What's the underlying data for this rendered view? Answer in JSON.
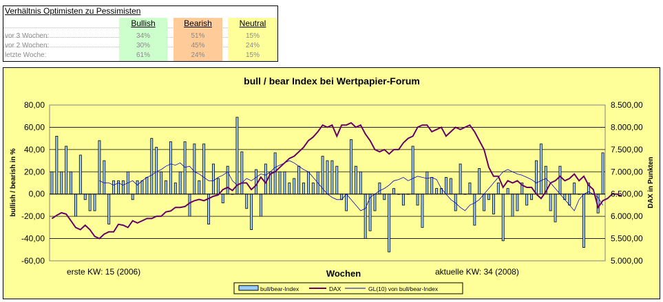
{
  "table": {
    "title": "Verhältnis Optimisten zu Pessimisten",
    "columns": [
      {
        "label": "Bullish",
        "color": "#ccffcc"
      },
      {
        "label": "Bearish",
        "color": "#ffcc99"
      },
      {
        "label": "Neutral",
        "color": "#ffff99"
      }
    ],
    "rows": [
      {
        "label": "vor 3 Wochen:",
        "values": [
          "34%",
          "51%",
          "15%"
        ]
      },
      {
        "label": "vor 2 Wochen:",
        "values": [
          "30%",
          "45%",
          "24%"
        ]
      },
      {
        "label": "letzte Woche:",
        "values": [
          "61%",
          "24%",
          "15%"
        ]
      }
    ]
  },
  "chart_data": {
    "type": "bar",
    "title": "bull / bear Index bei Wertpapier-Forum",
    "xlabel": "Wochen",
    "ylabel": "bullish / bearish in %",
    "y2label": "DAX in Punkten",
    "ylim": [
      -60,
      80
    ],
    "y_ticks": [
      "80,00",
      "60,00",
      "40,00",
      "20,00",
      "0,00",
      "-20,00",
      "-40,00",
      "-60,00"
    ],
    "y2lim": [
      5000,
      8500
    ],
    "y2_ticks": [
      "8.500,00",
      "8.000,00",
      "7.500,00",
      "7.000,00",
      "6.500,00",
      "6.000,00",
      "5.500,00",
      "5.000,00"
    ],
    "annotation_left": "erste KW: 15 (2006)",
    "annotation_right": "aktuelle KW: 34 (2008)",
    "grid": true,
    "legend_position": "bottom",
    "colors": {
      "plot_bg": "#ffff99",
      "frame_bg": "#ffff99",
      "bars": "#99ccff",
      "dax": "#660066",
      "gl": "#0000cc"
    },
    "series": [
      {
        "name": "bull/bear-Index",
        "type": "bar",
        "values": [
          20,
          52,
          20,
          43,
          20,
          -20,
          35,
          -5,
          -15,
          -15,
          48,
          30,
          -27,
          12,
          12,
          12,
          20,
          -5,
          12,
          12,
          15,
          50,
          42,
          20,
          12,
          47,
          10,
          20,
          47,
          -20,
          45,
          12,
          45,
          -27,
          27,
          14,
          -8,
          25,
          0,
          69,
          38,
          -13,
          -32,
          22,
          -20,
          27,
          20,
          37,
          20,
          20,
          10,
          14,
          25,
          10,
          20,
          10,
          20,
          34,
          30,
          30,
          25,
          -5,
          -15,
          49,
          25,
          20,
          -40,
          -33,
          -15,
          10,
          -5,
          -52,
          5,
          0,
          -10,
          0,
          43,
          -10,
          -30,
          20,
          15,
          5,
          5,
          15,
          14,
          -15,
          27,
          0,
          10,
          -28,
          23,
          -15,
          -5,
          -18,
          10,
          -42,
          5,
          -20,
          -15,
          10,
          -10,
          -5,
          30,
          45,
          25,
          -15,
          -25,
          25,
          -5,
          -10,
          10,
          0,
          -48,
          10,
          0,
          -17,
          37
        ]
      },
      {
        "name": "DAX",
        "type": "line",
        "values": [
          5950,
          6020,
          6080,
          6050,
          5900,
          5750,
          5700,
          5800,
          5700,
          5550,
          5500,
          5600,
          5650,
          5650,
          5820,
          5800,
          5750,
          5900,
          5850,
          5900,
          5950,
          5950,
          6000,
          6000,
          6100,
          6120,
          6200,
          6200,
          6220,
          6300,
          6350,
          6380,
          6350,
          6400,
          6450,
          6480,
          6600,
          6650,
          6580,
          6700,
          6750,
          6750,
          6600,
          6700,
          6880,
          6750,
          6950,
          7000,
          7100,
          7200,
          7300,
          7350,
          7450,
          7550,
          7700,
          7780,
          7900,
          8050,
          8000,
          8050,
          7800,
          8050,
          8050,
          8100,
          8000,
          8050,
          7850,
          7700,
          7500,
          7450,
          7500,
          7400,
          7500,
          7500,
          7650,
          7750,
          7800,
          8000,
          8050,
          8050,
          7900,
          7950,
          8000,
          7800,
          7900,
          8000,
          7950,
          8000,
          8050,
          7900,
          7700,
          7500,
          7100,
          6900,
          6900,
          6650,
          6800,
          6750,
          6800,
          6700,
          6650,
          6650,
          6500,
          6400,
          6550,
          6750,
          6800,
          6900,
          6800,
          6850,
          6950,
          6800,
          6900,
          6700,
          6600,
          6200,
          6350,
          6400,
          6500,
          6500,
          6450
        ]
      },
      {
        "name": "GL(10) von bull/bear-Index",
        "type": "line",
        "start_index": 10,
        "values": [
          12,
          10,
          10,
          8,
          10,
          8,
          10,
          12,
          8,
          12,
          15,
          17,
          20,
          22,
          25,
          27,
          26,
          28,
          24,
          25,
          20,
          18,
          15,
          12,
          12,
          15,
          17,
          20,
          12,
          8,
          10,
          14,
          12,
          15,
          18,
          17,
          20,
          24,
          26,
          28,
          30,
          28,
          25,
          22,
          20,
          15,
          10,
          5,
          0,
          -3,
          -5,
          -5,
          0,
          -5,
          -10,
          -15,
          -13,
          -3,
          0,
          3,
          5,
          8,
          12,
          13,
          15,
          12,
          14,
          16,
          15,
          14,
          15,
          13,
          5,
          0,
          -5,
          -8,
          -12,
          -15,
          -10,
          -8,
          -5,
          0,
          5,
          10,
          15,
          20,
          22,
          20,
          18,
          17,
          15,
          13,
          10,
          12,
          14,
          10,
          5,
          0,
          -5,
          -10,
          -15,
          -5,
          0,
          2,
          0,
          -3,
          -10
        ]
      }
    ]
  }
}
